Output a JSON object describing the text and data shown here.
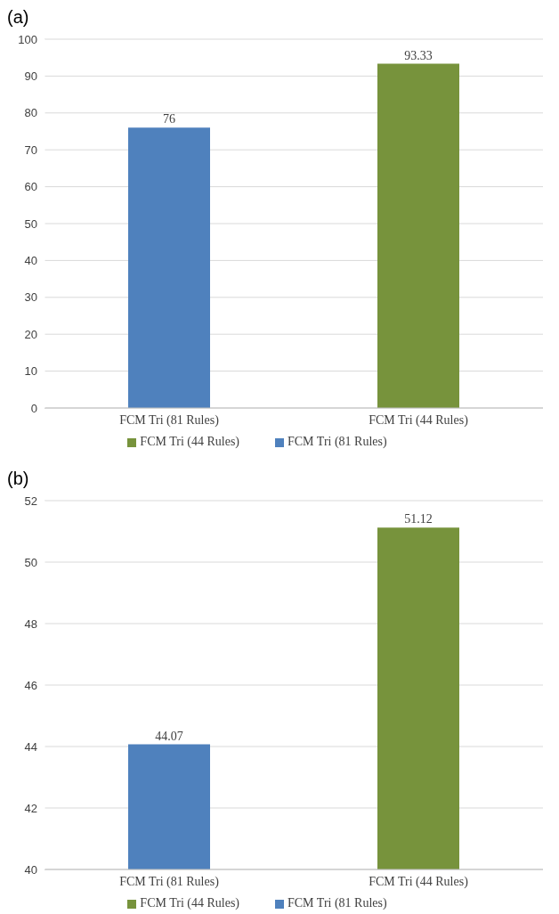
{
  "chart_data": [
    {
      "type": "bar",
      "title": "(a)",
      "categories": [
        "FCM Tri (81 Rules)",
        "FCM Tri (44 Rules)"
      ],
      "series": [
        {
          "name": "FCM Tri (81 Rules)",
          "color": "#4f81bd",
          "values": [
            76,
            null
          ]
        },
        {
          "name": "FCM Tri (44 Rules)",
          "color": "#77933c",
          "values": [
            null,
            93.33
          ]
        }
      ],
      "ylim": [
        0,
        100
      ],
      "yticks": [
        0,
        10,
        20,
        30,
        40,
        50,
        60,
        70,
        80,
        90,
        100
      ],
      "grid": "y",
      "data_labels": true,
      "legend": "bottom"
    },
    {
      "type": "bar",
      "title": "(b)",
      "categories": [
        "FCM Tri (81 Rules)",
        "FCM Tri (44 Rules)"
      ],
      "series": [
        {
          "name": "FCM Tri (81 Rules)",
          "color": "#4f81bd",
          "values": [
            44.07,
            null
          ]
        },
        {
          "name": "FCM Tri (44 Rules)",
          "color": "#77933c",
          "values": [
            null,
            51.12
          ]
        }
      ],
      "ylim": [
        40,
        52
      ],
      "yticks": [
        40,
        42,
        44,
        46,
        48,
        50,
        52
      ],
      "grid": "y",
      "data_labels": true,
      "legend": "bottom"
    }
  ]
}
